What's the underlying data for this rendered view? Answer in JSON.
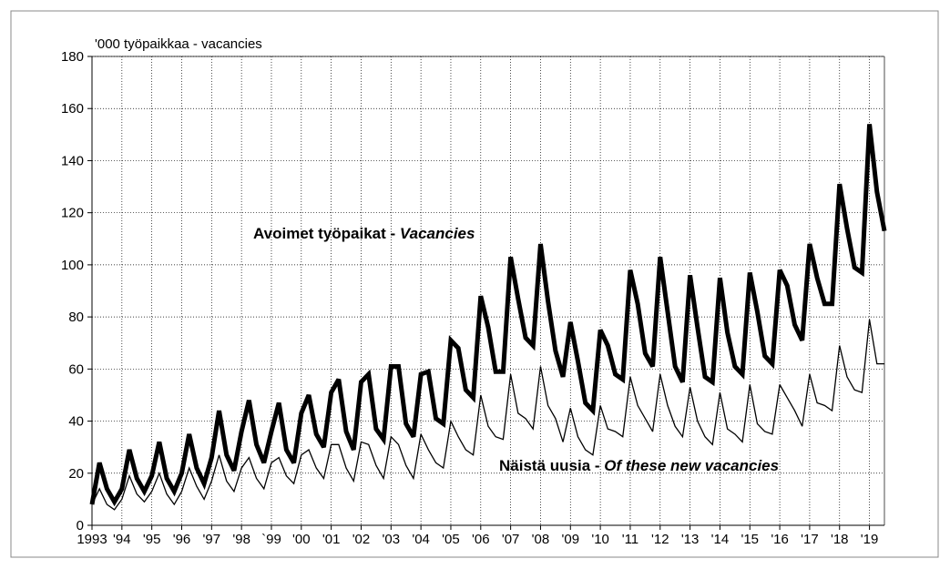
{
  "chart_data": {
    "type": "line",
    "y_label": "'000 työpaikkaa - vacancies",
    "annotations": [
      {
        "text": "Avoimet työpaikat - ",
        "italic_text": "Vacancies",
        "series": 0
      },
      {
        "text": "Näistä uusia - ",
        "italic_text": "Of these new vacancies",
        "series": 1
      }
    ],
    "x": [
      1993,
      1993.25,
      1993.5,
      1993.75,
      1994,
      1994.25,
      1994.5,
      1994.75,
      1995,
      1995.25,
      1995.5,
      1995.75,
      1996,
      1996.25,
      1996.5,
      1996.75,
      1997,
      1997.25,
      1997.5,
      1997.75,
      1998,
      1998.25,
      1998.5,
      1998.75,
      1999,
      1999.25,
      1999.5,
      1999.75,
      2000,
      2000.25,
      2000.5,
      2000.75,
      2001,
      2001.25,
      2001.5,
      2001.75,
      2002,
      2002.25,
      2002.5,
      2002.75,
      2003,
      2003.25,
      2003.5,
      2003.75,
      2004,
      2004.25,
      2004.5,
      2004.75,
      2005,
      2005.25,
      2005.5,
      2005.75,
      2006,
      2006.25,
      2006.5,
      2006.75,
      2007,
      2007.25,
      2007.5,
      2007.75,
      2008,
      2008.25,
      2008.5,
      2008.75,
      2009,
      2009.25,
      2009.5,
      2009.75,
      2010,
      2010.25,
      2010.5,
      2010.75,
      2011,
      2011.25,
      2011.5,
      2011.75,
      2012,
      2012.25,
      2012.5,
      2012.75,
      2013,
      2013.25,
      2013.5,
      2013.75,
      2014,
      2014.25,
      2014.5,
      2014.75,
      2015,
      2015.25,
      2015.5,
      2015.75,
      2016,
      2016.25,
      2016.5,
      2016.75,
      2017,
      2017.25,
      2017.5,
      2017.75,
      2018,
      2018.25,
      2018.5,
      2018.75,
      2019,
      2019.25,
      2019.5
    ],
    "series": [
      {
        "name": "Avoimet työpaikat - Vacancies",
        "color": "#000000",
        "width": 5,
        "values": [
          8,
          24,
          14,
          9,
          14,
          29,
          18,
          13,
          19,
          32,
          18,
          13,
          20,
          35,
          22,
          16,
          26,
          44,
          27,
          21,
          36,
          48,
          31,
          24,
          36,
          47,
          29,
          24,
          43,
          50,
          35,
          30,
          51,
          56,
          36,
          29,
          55,
          58,
          37,
          33,
          61,
          61,
          39,
          34,
          58,
          59,
          41,
          39,
          71,
          68,
          52,
          49,
          88,
          76,
          59,
          59,
          103,
          87,
          72,
          69,
          108,
          86,
          67,
          57,
          78,
          63,
          47,
          44,
          75,
          69,
          58,
          56,
          98,
          85,
          66,
          61,
          103,
          82,
          61,
          55,
          96,
          76,
          57,
          55,
          95,
          74,
          61,
          58,
          97,
          82,
          65,
          62,
          98,
          92,
          77,
          71,
          108,
          95,
          85,
          85,
          131,
          114,
          99,
          97,
          154,
          128,
          113
        ]
      },
      {
        "name": "Näistä uusia - Of these new vacancies",
        "color": "#000000",
        "width": 1.3,
        "values": [
          8,
          14,
          8,
          6,
          10,
          19,
          12,
          9,
          13,
          20,
          12,
          8,
          13,
          22,
          15,
          10,
          17,
          27,
          17,
          13,
          22,
          26,
          18,
          14,
          24,
          26,
          19,
          16,
          27,
          29,
          22,
          18,
          31,
          31,
          22,
          17,
          32,
          31,
          23,
          18,
          34,
          31,
          23,
          18,
          35,
          29,
          24,
          22,
          40,
          34,
          29,
          27,
          50,
          38,
          34,
          33,
          58,
          43,
          41,
          37,
          61,
          46,
          41,
          32,
          45,
          34,
          29,
          27,
          46,
          37,
          36,
          34,
          57,
          46,
          41,
          36,
          58,
          46,
          38,
          34,
          53,
          40,
          34,
          31,
          51,
          37,
          35,
          32,
          54,
          39,
          36,
          35,
          54,
          49,
          44,
          38,
          58,
          47,
          46,
          44,
          69,
          57,
          52,
          51,
          79,
          62,
          62
        ]
      }
    ],
    "xlim": [
      1993,
      2019.5
    ],
    "xticks": [
      1993,
      {
        "value": 1994,
        "label": "'94"
      },
      {
        "value": 1995,
        "label": "'95"
      },
      {
        "value": 1996,
        "label": "'96"
      },
      {
        "value": 1997,
        "label": "'97"
      },
      {
        "value": 1998,
        "label": "'98"
      },
      {
        "value": 1999,
        "label": "`99"
      },
      {
        "value": 2000,
        "label": "'00"
      },
      {
        "value": 2001,
        "label": "'01"
      },
      {
        "value": 2002,
        "label": "'02"
      },
      {
        "value": 2003,
        "label": "'03"
      },
      {
        "value": 2004,
        "label": "'04"
      },
      {
        "value": 2005,
        "label": "'05"
      },
      {
        "value": 2006,
        "label": "'06"
      },
      {
        "value": 2007,
        "label": "'07"
      },
      {
        "value": 2008,
        "label": "'08"
      },
      {
        "value": 2009,
        "label": "'09"
      },
      {
        "value": 2010,
        "label": "'10"
      },
      {
        "value": 2011,
        "label": "'11"
      },
      {
        "value": 2012,
        "label": "'12"
      },
      {
        "value": 2013,
        "label": "'13"
      },
      {
        "value": 2014,
        "label": "'14"
      },
      {
        "value": 2015,
        "label": "'15"
      },
      {
        "value": 2016,
        "label": "'16"
      },
      {
        "value": 2017,
        "label": "'17"
      },
      {
        "value": 2018,
        "label": "'18"
      },
      {
        "value": 2019,
        "label": "'19"
      }
    ],
    "ylim": [
      0,
      180
    ],
    "yticks": [
      0,
      20,
      40,
      60,
      80,
      100,
      120,
      140,
      160,
      180
    ],
    "grid": true
  }
}
